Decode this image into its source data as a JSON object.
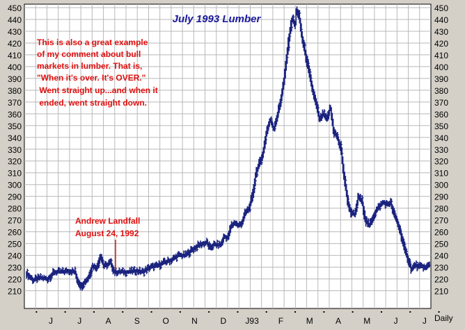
{
  "chart_data": {
    "type": "ohlc",
    "title": "July 1993 Lumber",
    "ylabel": "",
    "xlabel": "",
    "period_label": "Daily",
    "ylim": [
      205,
      450
    ],
    "y_ticks": [
      210,
      220,
      230,
      240,
      250,
      260,
      270,
      280,
      290,
      300,
      310,
      320,
      330,
      340,
      350,
      360,
      370,
      380,
      390,
      400,
      410,
      420,
      430,
      440,
      450
    ],
    "x_tick_labels": [
      "J",
      "J",
      "A",
      "S",
      "O",
      "N",
      "D",
      "J93",
      "F",
      "M",
      "A",
      "M",
      "J",
      "J"
    ],
    "grid": true,
    "colors": {
      "bars": "#1a237e",
      "title": "#1a1a9e",
      "annotation": "#e01010",
      "grid": "#b8b8b8"
    },
    "annotations": [
      {
        "id": "comment",
        "lines": [
          "This is also a great example",
          "of my comment about bull",
          "markets in lumber. That is,",
          "\"When it's over. It's OVER.\"",
          " Went straight up...and when it",
          " ended, went straight down."
        ]
      },
      {
        "id": "landfall",
        "lines": [
          "Andrew Landfall",
          "August 24, 1992"
        ]
      }
    ],
    "series": [
      {
        "points": [
          [
            0,
            225
          ],
          [
            8,
            219
          ],
          [
            16,
            221
          ],
          [
            24,
            220
          ],
          [
            32,
            226
          ],
          [
            40,
            226
          ],
          [
            48,
            227
          ],
          [
            55,
            226
          ],
          [
            58,
            219
          ],
          [
            62,
            214
          ],
          [
            70,
            221
          ],
          [
            75,
            231
          ],
          [
            80,
            230
          ],
          [
            84,
            240
          ],
          [
            88,
            231
          ],
          [
            92,
            232
          ],
          [
            95,
            234
          ],
          [
            100,
            226
          ],
          [
            108,
            226
          ],
          [
            116,
            226
          ],
          [
            124,
            227
          ],
          [
            132,
            226
          ],
          [
            140,
            230
          ],
          [
            148,
            231
          ],
          [
            156,
            234
          ],
          [
            164,
            236
          ],
          [
            172,
            240
          ],
          [
            180,
            240
          ],
          [
            188,
            245
          ],
          [
            196,
            249
          ],
          [
            204,
            251
          ],
          [
            208,
            246
          ],
          [
            212,
            249
          ],
          [
            220,
            249
          ],
          [
            224,
            256
          ],
          [
            228,
            255
          ],
          [
            232,
            265
          ],
          [
            236,
            268
          ],
          [
            240,
            265
          ],
          [
            244,
            268
          ],
          [
            248,
            276
          ],
          [
            252,
            280
          ],
          [
            256,
            290
          ],
          [
            260,
            310
          ],
          [
            264,
            318
          ],
          [
            268,
            327
          ],
          [
            272,
            345
          ],
          [
            276,
            355
          ],
          [
            280,
            348
          ],
          [
            284,
            358
          ],
          [
            288,
            372
          ],
          [
            292,
            390
          ],
          [
            295,
            410
          ],
          [
            298,
            428
          ],
          [
            301,
            441
          ],
          [
            304,
            435
          ],
          [
            306,
            448
          ],
          [
            309,
            441
          ],
          [
            312,
            425
          ],
          [
            316,
            410
          ],
          [
            320,
            395
          ],
          [
            324,
            380
          ],
          [
            328,
            368
          ],
          [
            332,
            355
          ],
          [
            336,
            360
          ],
          [
            340,
            355
          ],
          [
            344,
            365
          ],
          [
            348,
            345
          ],
          [
            352,
            340
          ],
          [
            356,
            330
          ],
          [
            360,
            305
          ],
          [
            364,
            285
          ],
          [
            368,
            275
          ],
          [
            372,
            275
          ],
          [
            376,
            290
          ],
          [
            380,
            285
          ],
          [
            384,
            270
          ],
          [
            388,
            265
          ],
          [
            392,
            272
          ],
          [
            396,
            278
          ],
          [
            400,
            282
          ],
          [
            404,
            285
          ],
          [
            408,
            283
          ],
          [
            412,
            285
          ],
          [
            416,
            275
          ],
          [
            420,
            268
          ],
          [
            424,
            258
          ],
          [
            428,
            245
          ],
          [
            432,
            237
          ],
          [
            436,
            228
          ],
          [
            440,
            232
          ],
          [
            444,
            230
          ],
          [
            448,
            231
          ],
          [
            452,
            229
          ],
          [
            456,
            233
          ]
        ]
      }
    ]
  }
}
